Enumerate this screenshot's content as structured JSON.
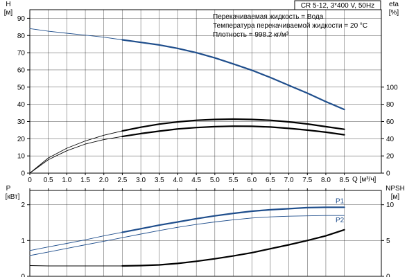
{
  "chart_data": [
    {
      "type": "line",
      "title": "CR 5-12, 3*400 V, 50Hz",
      "info_lines": [
        "Перекачиваемая жидкость = Вода",
        "Температура перекачиваемой жидкости = 20 °C",
        "Плотность = 998.2 кг/м³"
      ],
      "xlabel": "Q [м³/ч]",
      "x_ticks": [
        "0",
        "0.5",
        "1.0",
        "1.5",
        "2.0",
        "2.5",
        "3.0",
        "3.5",
        "4.0",
        "4.5",
        "5.0",
        "5.5",
        "6.0",
        "6.5",
        "7.0",
        "7.5",
        "8.0",
        "8.5"
      ],
      "xlim": [
        0,
        9.5
      ],
      "y_left_label_1": "H",
      "y_left_label_2": "[м]",
      "y_left_ticks": [
        "0",
        "10",
        "20",
        "30",
        "40",
        "50",
        "60",
        "70",
        "80",
        "90"
      ],
      "ylim_left": [
        0,
        95
      ],
      "y_right_label_1": "eta",
      "y_right_label_2": "[%]",
      "y_right_ticks": [
        "0",
        "20",
        "40",
        "60",
        "80",
        "100"
      ],
      "ylim_right": [
        0,
        190
      ],
      "grid": true,
      "series": [
        {
          "axis": "left",
          "color": "#1f4e8c",
          "thin_x": [
            0,
            0.5,
            1.0,
            1.5,
            2.0,
            2.5
          ],
          "thin_y": [
            84,
            82.5,
            81.3,
            80.2,
            79.0,
            77.5
          ],
          "thick_x": [
            2.5,
            3.0,
            3.5,
            4.0,
            4.5,
            5.0,
            5.5,
            6.0,
            6.5,
            7.0,
            7.5,
            8.0,
            8.5
          ],
          "thick_y": [
            77.5,
            76.0,
            74.5,
            72.5,
            70.0,
            67.0,
            63.5,
            59.8,
            55.6,
            51.0,
            46.5,
            41.6,
            37.0
          ]
        },
        {
          "axis": "left",
          "color": "#000000",
          "thin_x": [
            0,
            0.5,
            1.0,
            1.5,
            2.0,
            2.5
          ],
          "thin_y": [
            0,
            8.8,
            14.5,
            18.7,
            22.0,
            24.5
          ],
          "thick_x": [
            2.5,
            3.0,
            3.5,
            4.0,
            4.5,
            5.0,
            5.5,
            6.0,
            6.5,
            7.0,
            7.5,
            8.0,
            8.5
          ],
          "thick_y": [
            24.5,
            26.7,
            28.5,
            29.8,
            30.7,
            31.2,
            31.4,
            31.2,
            30.7,
            29.8,
            28.6,
            27.0,
            25.5
          ]
        },
        {
          "axis": "left",
          "color": "#000000",
          "thin_x": [
            0,
            0.5,
            1.0,
            1.5,
            2.0,
            2.5
          ],
          "thin_y": [
            0,
            7.8,
            13.0,
            16.9,
            19.5,
            21.3
          ],
          "thick_x": [
            2.5,
            3.0,
            3.5,
            4.0,
            4.5,
            5.0,
            5.5,
            6.0,
            6.5,
            7.0,
            7.5,
            8.0,
            8.5
          ],
          "thick_y": [
            21.3,
            23.0,
            24.4,
            25.7,
            26.5,
            27.0,
            27.3,
            27.2,
            26.8,
            26.0,
            25.0,
            23.8,
            22.3
          ]
        }
      ]
    },
    {
      "type": "line",
      "xlabel": "",
      "xlim": [
        0,
        9.5
      ],
      "y_left_label_1": "P",
      "y_left_label_2": "[кВт]",
      "y_left_ticks": [
        "0",
        "1",
        "2"
      ],
      "ylim_left": [
        0,
        2.4
      ],
      "y_right_label_1": "NPSH",
      "y_right_label_2": "[м]",
      "y_right_ticks": [
        "0",
        "5",
        "10"
      ],
      "ylim_right": [
        0,
        12
      ],
      "grid": true,
      "series": [
        {
          "name": "P1",
          "axis": "left",
          "color": "#1f4e8c",
          "thin_x": [
            0,
            0.5,
            1.0,
            1.5,
            2.0,
            2.5
          ],
          "thin_y": [
            0.72,
            0.82,
            0.92,
            1.02,
            1.13,
            1.23
          ],
          "thick_x": [
            2.5,
            3.0,
            3.5,
            4.0,
            4.5,
            5.0,
            5.5,
            6.0,
            6.5,
            7.0,
            7.5,
            8.0,
            8.5
          ],
          "thick_y": [
            1.23,
            1.33,
            1.43,
            1.52,
            1.61,
            1.69,
            1.76,
            1.82,
            1.86,
            1.89,
            1.92,
            1.93,
            1.93
          ]
        },
        {
          "name": "P2",
          "axis": "left",
          "color": "#1f4e8c",
          "thin_x": [
            0,
            0.5,
            1.0,
            1.5,
            2.0,
            2.5,
            3.0,
            3.5,
            4.0,
            4.5,
            5.0,
            5.5,
            6.0,
            6.5,
            7.0,
            7.5,
            8.0,
            8.5
          ],
          "thin_y": [
            0.58,
            0.68,
            0.78,
            0.88,
            0.98,
            1.08,
            1.18,
            1.28,
            1.37,
            1.45,
            1.52,
            1.58,
            1.63,
            1.66,
            1.68,
            1.69,
            1.7,
            1.7
          ],
          "thick_x": [],
          "thick_y": []
        },
        {
          "axis": "right",
          "color": "#000000",
          "thin_x": [
            0,
            0.5,
            1.0,
            1.5,
            2.0,
            2.5
          ],
          "thin_y": [
            1.5,
            1.45,
            1.45,
            1.45,
            1.45,
            1.45
          ],
          "thick_x": [
            2.5,
            3.0,
            3.5,
            4.0,
            4.5,
            5.0,
            5.5,
            6.0,
            6.5,
            7.0,
            7.5,
            8.0,
            8.5
          ],
          "thick_y": [
            1.45,
            1.5,
            1.6,
            1.8,
            2.1,
            2.45,
            2.85,
            3.3,
            3.85,
            4.4,
            5.0,
            5.65,
            6.5
          ]
        }
      ]
    }
  ]
}
